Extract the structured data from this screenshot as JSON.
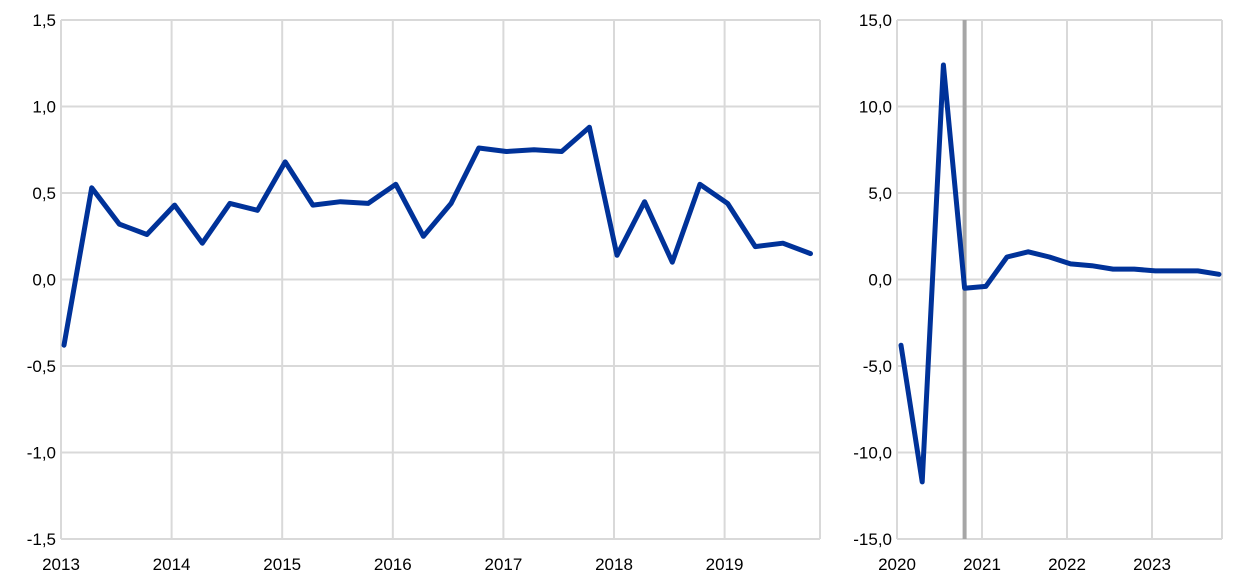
{
  "chart_data": [
    {
      "type": "line",
      "x": [
        "2013Q1",
        "2013Q2",
        "2013Q3",
        "2013Q4",
        "2014Q1",
        "2014Q2",
        "2014Q3",
        "2014Q4",
        "2015Q1",
        "2015Q2",
        "2015Q3",
        "2015Q4",
        "2016Q1",
        "2016Q2",
        "2016Q3",
        "2016Q4",
        "2017Q1",
        "2017Q2",
        "2017Q3",
        "2017Q4",
        "2018Q1",
        "2018Q2",
        "2018Q3",
        "2018Q4",
        "2019Q1",
        "2019Q2",
        "2019Q3",
        "2019Q4"
      ],
      "values": [
        -0.38,
        0.53,
        0.32,
        0.26,
        0.43,
        0.21,
        0.44,
        0.4,
        0.68,
        0.43,
        0.45,
        0.44,
        0.55,
        0.25,
        0.44,
        0.76,
        0.74,
        0.75,
        0.74,
        0.88,
        0.14,
        0.45,
        0.1,
        0.55,
        0.44,
        0.19,
        0.21,
        0.15
      ],
      "ylim": [
        -1.5,
        1.5
      ],
      "yticks": [
        "-1,5",
        "-1,0",
        "-0,5",
        "0,0",
        "0,5",
        "1,0",
        "1,5"
      ],
      "xticks": [
        "2013",
        "2014",
        "2015",
        "2016",
        "2017",
        "2018",
        "2019"
      ],
      "grid": true,
      "color": "#003299"
    },
    {
      "type": "line",
      "x": [
        "2020Q1",
        "2020Q2",
        "2020Q3",
        "2020Q4",
        "2021Q1",
        "2021Q2",
        "2021Q3",
        "2021Q4",
        "2022Q1",
        "2022Q2",
        "2022Q3",
        "2022Q4",
        "2023Q1",
        "2023Q2",
        "2023Q3",
        "2023Q4"
      ],
      "values": [
        -3.8,
        -11.7,
        12.4,
        -0.5,
        -0.4,
        1.3,
        1.6,
        1.3,
        0.9,
        0.8,
        0.6,
        0.6,
        0.5,
        0.5,
        0.5,
        0.3
      ],
      "ylim": [
        -15,
        15
      ],
      "yticks": [
        "-15,0",
        "-10,0",
        "-5,0",
        "0,0",
        "5,0",
        "10,0",
        "15,0"
      ],
      "xticks": [
        "2020",
        "2021",
        "2022",
        "2023"
      ],
      "grid": true,
      "color": "#003299",
      "vertical_marker_at": "2020Q4",
      "marker_color": "#a6a6a6"
    }
  ]
}
